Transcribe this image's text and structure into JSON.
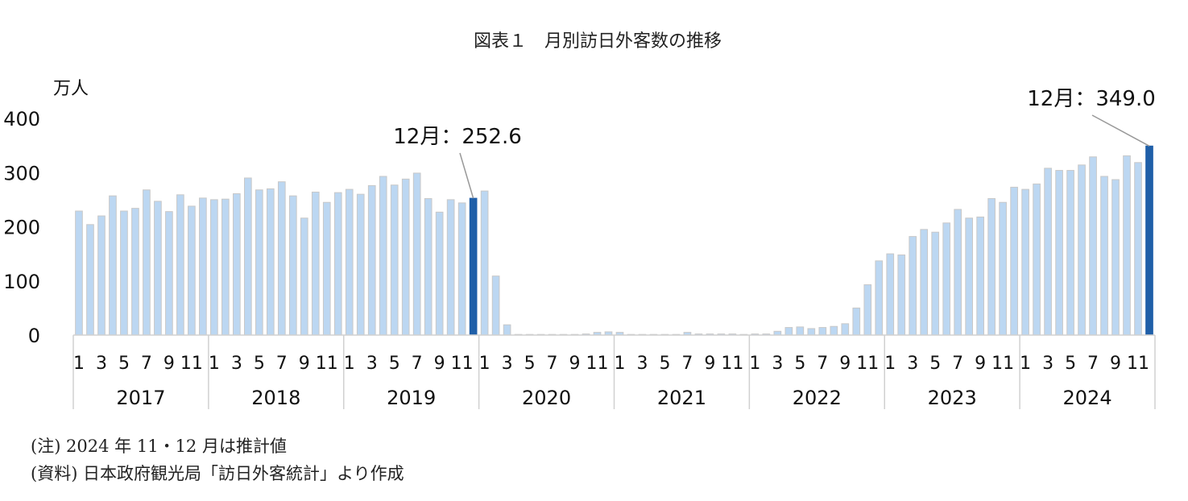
{
  "chart_data": {
    "type": "bar",
    "title": "図表１　月別訪日外客数の推移",
    "ylabel": "万人",
    "ylim": [
      0,
      400
    ],
    "yticks": [
      0,
      100,
      200,
      300,
      400
    ],
    "month_tick_labels": [
      "1",
      "3",
      "5",
      "7",
      "9",
      "11"
    ],
    "month_tick_positions": [
      1,
      3,
      5,
      7,
      9,
      11
    ],
    "years": [
      "2017",
      "2018",
      "2019",
      "2020",
      "2021",
      "2022",
      "2023",
      "2024"
    ],
    "grid": false,
    "colors": {
      "bar": "#bcd7f2",
      "bar_edge": "#c8c8c8",
      "highlight": "#1f5fa8",
      "axis": "#d0d0d0",
      "leader": "#999999"
    },
    "values": [
      229,
      204,
      220,
      257,
      229,
      234,
      268,
      247,
      228,
      259,
      238,
      253,
      250,
      251,
      261,
      290,
      268,
      270,
      283,
      257,
      216,
      264,
      245,
      263,
      269,
      260,
      276,
      293,
      277,
      288,
      299,
      252,
      227,
      250,
      244,
      252.6,
      266,
      109,
      19,
      0,
      0,
      0,
      0,
      1,
      1,
      2,
      5,
      6,
      5,
      1,
      1,
      1,
      1,
      1,
      5,
      2,
      2,
      2,
      2,
      1,
      2,
      2,
      7,
      14,
      15,
      12,
      14,
      16,
      21,
      50,
      93,
      137,
      150,
      148,
      182,
      195,
      190,
      207,
      232,
      216,
      218,
      252,
      245,
      273,
      269,
      279,
      308,
      304,
      304,
      314,
      329,
      293,
      287,
      331,
      318.5,
      349.0
    ],
    "highlight_indices": [
      35,
      95
    ],
    "annotations": [
      {
        "text": "12月：252.6",
        "index": 35
      },
      {
        "text": "12月：349.0",
        "index": 95
      }
    ]
  },
  "notes": {
    "note1": "(注) 2024 年 11・12 月は推計値",
    "note2": "(資料) 日本政府観光局「訪日外客統計」より作成"
  }
}
